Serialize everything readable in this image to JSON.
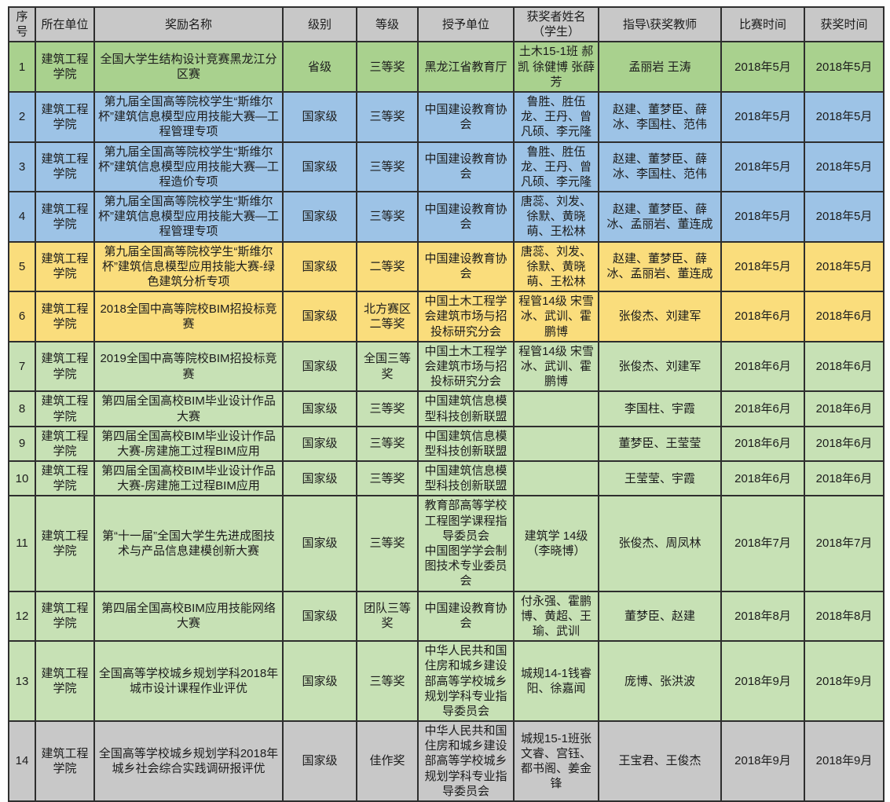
{
  "colors": {
    "header_bg": "#c8c8c8",
    "border": "#2e2e2e",
    "row_green": "#a9d18e",
    "row_blue": "#9dc3e6",
    "row_yellow": "#fadd7c",
    "row_sage": "#c7e1b5",
    "row_gray": "#c8c8c8"
  },
  "table": {
    "header": [
      "序号",
      "所在单位",
      "奖励名称",
      "级别",
      "等级",
      "授予单位",
      "获奖者姓名（学生）",
      "指导\\获奖教师",
      "比赛时间",
      "获奖时间"
    ],
    "column_keys": [
      "index",
      "unit",
      "award-name",
      "level",
      "grade",
      "granting-unit",
      "student-names",
      "teachers",
      "competition-date",
      "award-date"
    ],
    "rows": [
      {
        "color": "green",
        "cells": [
          "1",
          "建筑工程学院",
          "全国大学生结构设计竞赛黑龙江分区赛",
          "省级",
          "三等奖",
          "黑龙江省教育厅",
          "土木15-1班 郝凯 徐健博 张薛芳",
          "孟丽岩 王涛",
          "2018年5月",
          "2018年5月"
        ]
      },
      {
        "color": "blue",
        "cells": [
          "2",
          "建筑工程学院",
          "第九届全国高等院校学生“斯维尔杯”建筑信息模型应用技能大赛—工程管理专项",
          "国家级",
          "三等奖",
          "中国建设教育协会",
          "鲁胜、胜伍龙、王丹、曾凡硕、李元隆",
          "赵建、董梦臣、薛冰、李国柱、范伟",
          "2018年5月",
          "2018年5月"
        ]
      },
      {
        "color": "blue",
        "cells": [
          "3",
          "建筑工程学院",
          "第九届全国高等院校学生“斯维尔杯”建筑信息模型应用技能大赛—工程造价专项",
          "国家级",
          "三等奖",
          "中国建设教育协会",
          "鲁胜、胜伍龙、王丹、曾凡硕、李元隆",
          "赵建、董梦臣、薛冰、李国柱、范伟",
          "2018年5月",
          "2018年5月"
        ]
      },
      {
        "color": "blue",
        "cells": [
          "4",
          "建筑工程学院",
          "第九届全国高等院校学生“斯维尔杯”建筑信息模型应用技能大赛—工程管理专项",
          "国家级",
          "三等奖",
          "中国建设教育协会",
          "唐蕊、刘发、徐默、黄晓萌、王松林",
          "赵建、董梦臣、薛冰、孟丽岩、董连成",
          "2018年5月",
          "2018年5月"
        ]
      },
      {
        "color": "yellow",
        "cells": [
          "5",
          "建筑工程学院",
          "第九届全国高等院校学生“斯维尔杯”建筑信息模型应用技能大赛-绿色建筑分析专项",
          "国家级",
          "二等奖",
          "中国建设教育协会",
          "唐蕊、刘发、徐默、黄晓萌、王松林",
          "赵建、董梦臣、薛冰、孟丽岩、董连成",
          "2018年5月",
          "2018年5月"
        ]
      },
      {
        "color": "yellow",
        "cells": [
          "6",
          "建筑工程学院",
          "2018全国中高等院校BIM招投标竞赛",
          "国家级",
          "北方赛区二等奖",
          "中国土木工程学会建筑市场与招投标研究分会",
          "程管14级 宋雪冰、武训、霍鹏博",
          "张俊杰、刘建军",
          "2018年6月",
          "2018年6月"
        ]
      },
      {
        "color": "sage",
        "cells": [
          "7",
          "建筑工程学院",
          "2019全国中高等院校BIM招投标竞赛",
          "国家级",
          "全国三等奖",
          "中国土木工程学会建筑市场与招投标研究分会",
          "程管14级 宋雪冰、武训、霍鹏博",
          "张俊杰、刘建军",
          "2018年6月",
          "2018年6月"
        ]
      },
      {
        "color": "sage",
        "cells": [
          "8",
          "建筑工程学院",
          "第四届全国高校BIM毕业设计作品大赛",
          "国家级",
          "三等奖",
          "中国建筑信息模型科技创新联盟",
          "",
          "李国柱、宇霞",
          "2018年6月",
          "2018年6月"
        ]
      },
      {
        "color": "sage",
        "cells": [
          "9",
          "建筑工程学院",
          "第四届全国高校BIM毕业设计作品大赛-房建施工过程BIM应用",
          "国家级",
          "三等奖",
          "中国建筑信息模型科技创新联盟",
          "",
          "董梦臣、王莹莹",
          "2018年6月",
          "2018年6月"
        ]
      },
      {
        "color": "sage",
        "cells": [
          "10",
          "建筑工程学院",
          "第四届全国高校BIM毕业设计作品大赛-房建施工过程BIM应用",
          "国家级",
          "三等奖",
          "中国建筑信息模型科技创新联盟",
          "",
          "王莹莹、宇霞",
          "2018年6月",
          "2018年6月"
        ]
      },
      {
        "color": "sage",
        "cells": [
          "11",
          "建筑工程学院",
          "第“十一届”全国大学生先进成图技术与产品信息建模创新大赛",
          "国家级",
          "三等奖",
          "教育部高等学校工程图学课程指导委员会\n中国图学学会制图技术专业委员会",
          "建筑学 14级\n（李晓博）",
          "张俊杰、周凤林",
          "2018年7月",
          "2018年7月"
        ]
      },
      {
        "color": "sage",
        "cells": [
          "12",
          "建筑工程学院",
          "第四届全国高校BIM应用技能网络大赛",
          "国家级",
          "团队三等奖",
          "中国建设教育协会",
          "付永强、霍鹏博、黄超、王瑜、武训",
          "董梦臣、赵建",
          "2018年8月",
          "2018年8月"
        ]
      },
      {
        "color": "sage",
        "cells": [
          "13",
          "建筑工程学院",
          "全国高等学校城乡规划学科2018年城市设计课程作业评优",
          "国家级",
          "三等奖",
          "中华人民共和国住房和城乡建设部高等学校城乡规划学科专业指导委员会",
          "城规14-1钱睿阳、徐嘉闻",
          "庞博、张洪波",
          "2018年9月",
          "2018年9月"
        ]
      },
      {
        "color": "gray",
        "cells": [
          "14",
          "建筑工程学院",
          "全国高等学校城乡规划学科2018年城乡社会综合实践调研报评优",
          "国家级",
          "佳作奖",
          "中华人民共和国住房和城乡建设部高等学校城乡规划学科专业指导委员会",
          "城规15-1班张文睿、宫钰、都书阁、姜金锋",
          "王宝君、王俊杰",
          "2018年9月",
          "2018年9月"
        ]
      }
    ]
  }
}
